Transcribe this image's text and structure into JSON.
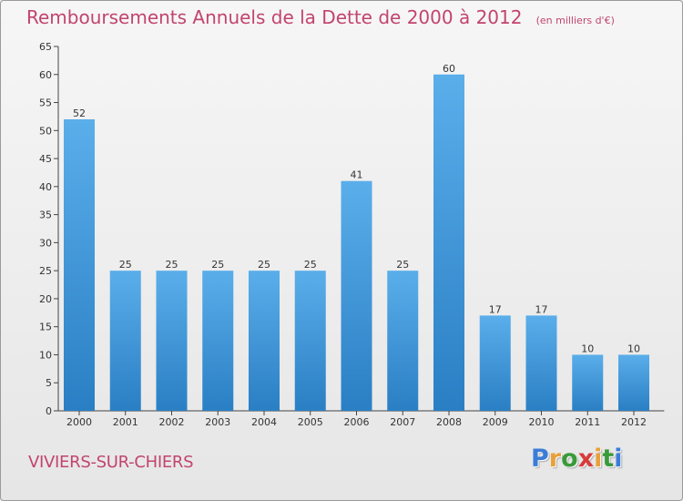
{
  "header": {
    "title": "Remboursements Annuels de la Dette de 2000 à 2012",
    "subtitle": "(en milliers d'€)"
  },
  "footer": {
    "commune": "VIVIERS-SUR-CHIERS",
    "logo_text": "Proxiti"
  },
  "colors": {
    "title": "#c2446f",
    "bar_top": "#5aaeea",
    "bar_bottom": "#2a7fc4",
    "logo_letters": [
      "#3a7dd8",
      "#e8a13a",
      "#3a9a3a",
      "#d83a3a",
      "#e8a13a",
      "#3a9a3a",
      "#3a7dd8"
    ]
  },
  "chart_data": {
    "type": "bar",
    "title": "Remboursements Annuels de la Dette de 2000 à 2012",
    "subtitle": "(en milliers d'€)",
    "categories": [
      "2000",
      "2001",
      "2002",
      "2003",
      "2004",
      "2005",
      "2006",
      "2007",
      "2008",
      "2009",
      "2010",
      "2011",
      "2012"
    ],
    "values": [
      52,
      25,
      25,
      25,
      25,
      25,
      41,
      25,
      60,
      17,
      17,
      10,
      10
    ],
    "value_labels": [
      "52",
      "25",
      "25",
      "25",
      "25",
      "25",
      "41",
      "25",
      "60",
      "17",
      "17",
      "10",
      "10"
    ],
    "ylim": [
      0,
      65
    ],
    "yticks": [
      0,
      5,
      10,
      15,
      20,
      25,
      30,
      35,
      40,
      45,
      50,
      55,
      60,
      65
    ],
    "xlabel": "",
    "ylabel": "",
    "grid": false,
    "legend": "none"
  }
}
